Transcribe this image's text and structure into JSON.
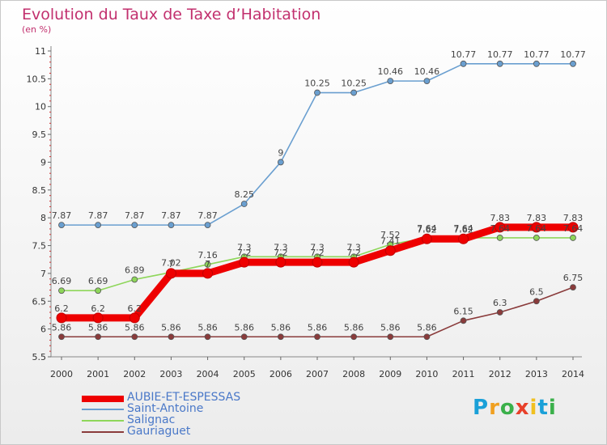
{
  "header": {
    "title": "Evolution du Taux de Taxe d’Habitation",
    "subtitle": "(en %)"
  },
  "logo": {
    "letters": [
      "P",
      "r",
      "o",
      "x",
      "i",
      "t",
      "i"
    ],
    "colors": [
      "#1aa0d8",
      "#f0a020",
      "#3ab04a",
      "#e8402a",
      "#f0c020",
      "#1aa0d8",
      "#3ab04a"
    ]
  },
  "chart_data": {
    "type": "line",
    "x": [
      "2000",
      "2001",
      "2002",
      "2003",
      "2004",
      "2005",
      "2006",
      "2007",
      "2008",
      "2009",
      "2010",
      "2011",
      "2012",
      "2013",
      "2014"
    ],
    "ylim": [
      5.5,
      11
    ],
    "yticks": [
      "5.5",
      "6",
      "6.5",
      "7",
      "7.5",
      "8",
      "8.5",
      "9",
      "9.5",
      "10",
      "10.5",
      "11"
    ],
    "grid": false,
    "legend_position": "bottom-left",
    "series": [
      {
        "name": "AUBIE-ET-ESPESSAS",
        "color": "#ee0000",
        "values": [
          6.2,
          6.2,
          6.2,
          7.0,
          7.0,
          7.2,
          7.2,
          7.2,
          7.2,
          7.41,
          7.62,
          7.62,
          7.83,
          7.83,
          7.83
        ],
        "labels": [
          "6.2",
          "6.2",
          "6.2",
          "7",
          "7",
          "7.2",
          "7.2",
          "7.2",
          "7.2",
          "7.41",
          "7.62",
          "7.62",
          "7.83",
          "7.83",
          "7.83"
        ]
      },
      {
        "name": "Saint-Antoine",
        "color": "#6a9fd0",
        "values": [
          7.87,
          7.87,
          7.87,
          7.87,
          7.87,
          8.25,
          9.0,
          10.25,
          10.25,
          10.46,
          10.46,
          10.77,
          10.77,
          10.77,
          10.77
        ],
        "labels": [
          "7.87",
          "7.87",
          "7.87",
          "7.87",
          "7.87",
          "8.25",
          "9",
          "10.25",
          "10.25",
          "10.46",
          "10.46",
          "10.77",
          "10.77",
          "10.77",
          "10.77"
        ]
      },
      {
        "name": "Salignac",
        "color": "#8ed65a",
        "values": [
          6.69,
          6.69,
          6.89,
          7.02,
          7.16,
          7.3,
          7.3,
          7.3,
          7.3,
          7.52,
          7.64,
          7.64,
          7.64,
          7.64,
          7.64
        ],
        "labels": [
          "6.69",
          "6.69",
          "6.89",
          "7.02",
          "7.16",
          "7.3",
          "7.3",
          "7.3",
          "7.3",
          "7.52",
          "7.64",
          "7.64",
          "7.64",
          "7.64",
          "7.64"
        ]
      },
      {
        "name": "Gauriaguet",
        "color": "#8a3b3b",
        "values": [
          5.86,
          5.86,
          5.86,
          5.86,
          5.86,
          5.86,
          5.86,
          5.86,
          5.86,
          5.86,
          5.86,
          6.15,
          6.3,
          6.5,
          6.75
        ],
        "labels": [
          "5.86",
          "5.86",
          "5.86",
          "5.86",
          "5.86",
          "5.86",
          "5.86",
          "5.86",
          "5.86",
          "5.86",
          "5.86",
          "6.15",
          "6.3",
          "6.5",
          "6.75"
        ]
      }
    ]
  }
}
